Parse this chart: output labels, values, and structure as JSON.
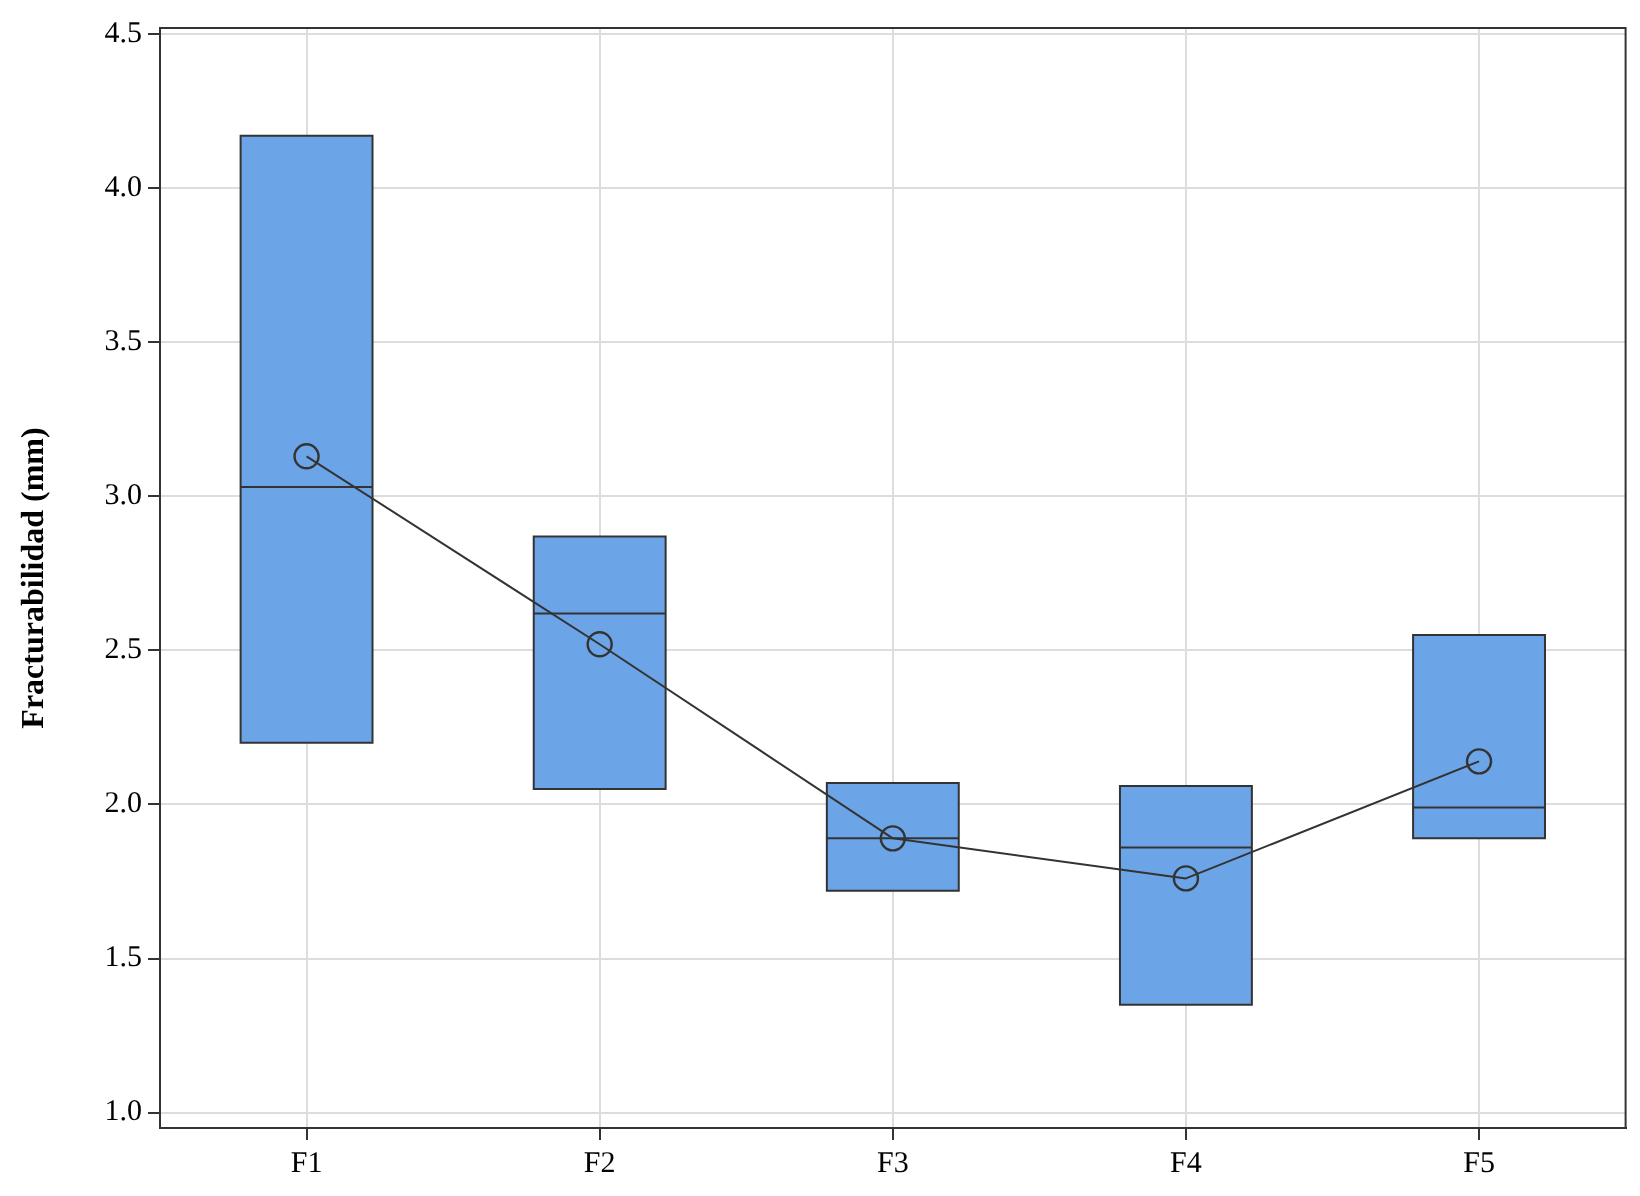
{
  "chart_data": {
    "type": "box",
    "ylabel": "Fracturabilidad (mm)",
    "categories": [
      "F1",
      "F2",
      "F3",
      "F4",
      "F5"
    ],
    "series": [
      {
        "color": "#6ca4e8",
        "boxes": [
          {
            "low": 2.2,
            "q1": 2.2,
            "median": 3.03,
            "q3": 4.17,
            "high": 4.17
          },
          {
            "low": 2.05,
            "q1": 2.05,
            "median": 2.62,
            "q3": 2.87,
            "high": 2.87
          },
          {
            "low": 1.72,
            "q1": 1.72,
            "median": 1.89,
            "q3": 2.07,
            "high": 2.07
          },
          {
            "low": 1.35,
            "q1": 1.35,
            "median": 1.86,
            "q3": 2.06,
            "high": 2.06
          },
          {
            "low": 1.89,
            "q1": 1.89,
            "median": 1.99,
            "q3": 2.55,
            "high": 2.55
          }
        ]
      },
      {
        "type": "line",
        "color": "#333333",
        "marker": "circle",
        "values": [
          3.13,
          2.52,
          1.89,
          1.76,
          2.14
        ]
      }
    ],
    "ylim": [
      0.95,
      4.52
    ],
    "yticks": [
      {
        "value": 1,
        "label": "1.0"
      },
      {
        "value": 1.5,
        "label": "1.5"
      },
      {
        "value": 2,
        "label": "2.0"
      },
      {
        "value": 2.5,
        "label": "2.5"
      },
      {
        "value": 3,
        "label": "3.0"
      },
      {
        "value": 3.5,
        "label": "3.5"
      },
      {
        "value": 4,
        "label": "4.0"
      },
      {
        "value": 4.5,
        "label": "4.5"
      }
    ],
    "grid": true,
    "legend": false
  }
}
